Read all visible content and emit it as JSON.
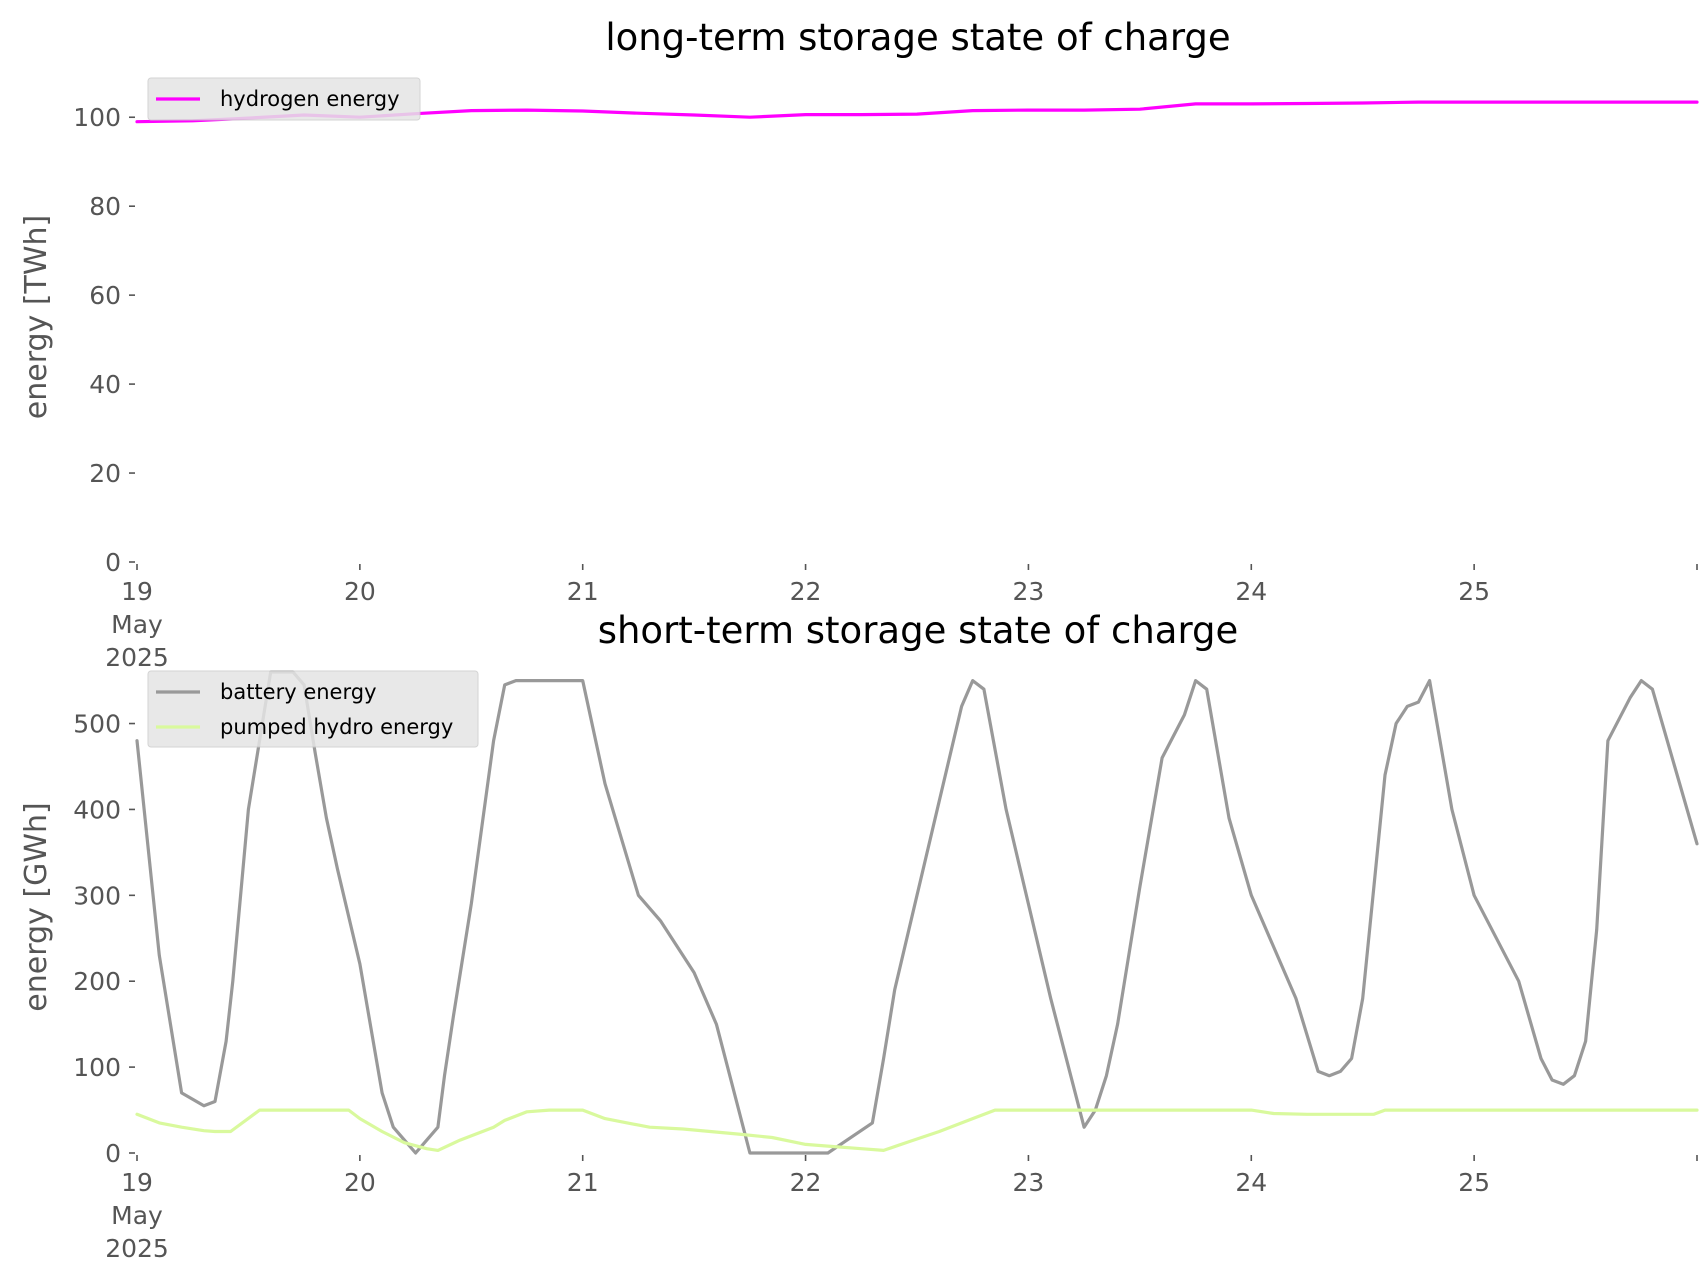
{
  "chart_data": [
    {
      "type": "line",
      "title": "long-term storage state of charge",
      "xlabel": "",
      "ylabel": "energy [TWh]",
      "xlim": [
        "2025-05-19",
        "2025-05-26"
      ],
      "ylim": [
        0,
        105
      ],
      "yticks": [
        0,
        20,
        40,
        60,
        80,
        100
      ],
      "xtick_labels": [
        {
          "day": 0,
          "lines": [
            "19",
            "May",
            "2025"
          ]
        },
        {
          "day": 1,
          "lines": [
            "20"
          ]
        },
        {
          "day": 2,
          "lines": [
            "21"
          ]
        },
        {
          "day": 3,
          "lines": [
            "22"
          ]
        },
        {
          "day": 4,
          "lines": [
            "23"
          ]
        },
        {
          "day": 5,
          "lines": [
            "24"
          ]
        },
        {
          "day": 6,
          "lines": [
            "25"
          ]
        },
        {
          "day": 7,
          "lines": [
            ""
          ]
        }
      ],
      "grid": false,
      "legend_position": "top-left",
      "series": [
        {
          "name": "hydrogen energy",
          "color": "#ff00ff",
          "x": [
            0,
            0.25,
            0.5,
            0.75,
            1.0,
            1.25,
            1.5,
            1.75,
            2.0,
            2.25,
            2.5,
            2.75,
            3.0,
            3.25,
            3.5,
            3.75,
            4.0,
            4.25,
            4.5,
            4.75,
            5.0,
            5.25,
            5.5,
            5.75,
            6.0,
            6.25,
            6.5,
            6.75,
            7.0
          ],
          "y": [
            99.0,
            99.2,
            99.8,
            100.5,
            100.0,
            100.8,
            101.5,
            101.6,
            101.4,
            100.9,
            100.5,
            100.0,
            100.6,
            100.6,
            100.7,
            101.5,
            101.6,
            101.6,
            101.8,
            103.0,
            103.0,
            103.1,
            103.2,
            103.4,
            103.4,
            103.4,
            103.4,
            103.4,
            103.4
          ]
        }
      ]
    },
    {
      "type": "line",
      "title": "short-term storage state of charge",
      "xlabel": "",
      "ylabel": "energy [GWh]",
      "xlim": [
        "2025-05-19",
        "2025-05-26"
      ],
      "ylim": [
        0,
        560
      ],
      "yticks": [
        0,
        100,
        200,
        300,
        400,
        500
      ],
      "xtick_labels": [
        {
          "day": 0,
          "lines": [
            "19",
            "May",
            "2025"
          ]
        },
        {
          "day": 1,
          "lines": [
            "20"
          ]
        },
        {
          "day": 2,
          "lines": [
            "21"
          ]
        },
        {
          "day": 3,
          "lines": [
            "22"
          ]
        },
        {
          "day": 4,
          "lines": [
            "23"
          ]
        },
        {
          "day": 5,
          "lines": [
            "24"
          ]
        },
        {
          "day": 6,
          "lines": [
            "25"
          ]
        },
        {
          "day": 7,
          "lines": [
            ""
          ]
        }
      ],
      "grid": false,
      "legend_position": "top-left",
      "series": [
        {
          "name": "battery energy",
          "color": "#999999",
          "x": [
            0,
            0.1,
            0.2,
            0.3,
            0.35,
            0.4,
            0.43,
            0.5,
            0.6,
            0.7,
            0.75,
            0.8,
            0.85,
            0.9,
            1.0,
            1.1,
            1.15,
            1.25,
            1.35,
            1.38,
            1.42,
            1.5,
            1.6,
            1.65,
            1.7,
            1.8,
            2.0,
            2.1,
            2.25,
            2.35,
            2.5,
            2.6,
            2.65,
            2.75,
            2.85,
            3.0,
            3.1,
            3.3,
            3.35,
            3.4,
            3.5,
            3.6,
            3.7,
            3.75,
            3.8,
            3.9,
            4.0,
            4.1,
            4.25,
            4.3,
            4.35,
            4.4,
            4.5,
            4.6,
            4.7,
            4.75,
            4.8,
            4.9,
            5.0,
            5.2,
            5.3,
            5.35,
            5.4,
            5.45,
            5.5,
            5.55,
            5.6,
            5.65,
            5.7,
            5.75,
            5.8,
            5.9,
            6.0,
            6.2,
            6.3,
            6.35,
            6.4,
            6.45,
            6.5,
            6.55,
            6.6,
            6.7,
            6.75,
            6.8,
            6.9,
            7.0
          ],
          "y": [
            480,
            230,
            70,
            55,
            60,
            130,
            200,
            400,
            560,
            560,
            545,
            465,
            390,
            330,
            220,
            70,
            30,
            0,
            30,
            90,
            160,
            290,
            480,
            545,
            550,
            550,
            550,
            430,
            300,
            270,
            210,
            150,
            100,
            0,
            0,
            0,
            0,
            35,
            110,
            190,
            300,
            410,
            520,
            550,
            540,
            400,
            290,
            180,
            30,
            50,
            90,
            150,
            310,
            460,
            510,
            550,
            540,
            390,
            300,
            180,
            95,
            90,
            95,
            110,
            180,
            310,
            440,
            500,
            520,
            525,
            550,
            400,
            300,
            200,
            110,
            85,
            80,
            90,
            130,
            260,
            480,
            530,
            550,
            540,
            450,
            360
          ],
          "_note_unused": ""
        },
        {
          "name": "pumped hydro energy",
          "color": "#d9f99d",
          "x": [
            0,
            0.1,
            0.2,
            0.3,
            0.35,
            0.42,
            0.55,
            0.6,
            0.9,
            0.95,
            1.0,
            1.1,
            1.2,
            1.3,
            1.35,
            1.45,
            1.6,
            1.65,
            1.75,
            1.85,
            2.0,
            2.1,
            2.2,
            2.3,
            2.45,
            2.7,
            2.85,
            3.0,
            3.1,
            3.25,
            3.35,
            3.45,
            3.6,
            3.75,
            3.85,
            4.0,
            4.5,
            4.9,
            5.0,
            5.1,
            5.25,
            5.35,
            5.45,
            5.5,
            5.55,
            5.6,
            5.8,
            6.0,
            6.5,
            7.0
          ],
          "y": [
            45,
            35,
            30,
            26,
            25,
            25,
            50,
            50,
            50,
            50,
            40,
            25,
            12,
            5,
            3,
            15,
            30,
            38,
            48,
            50,
            50,
            40,
            35,
            30,
            28,
            22,
            18,
            10,
            8,
            5,
            3,
            12,
            25,
            40,
            50,
            50,
            50,
            50,
            50,
            46,
            45,
            45,
            45,
            45,
            45,
            50,
            50,
            50,
            50,
            50
          ]
        }
      ]
    }
  ]
}
